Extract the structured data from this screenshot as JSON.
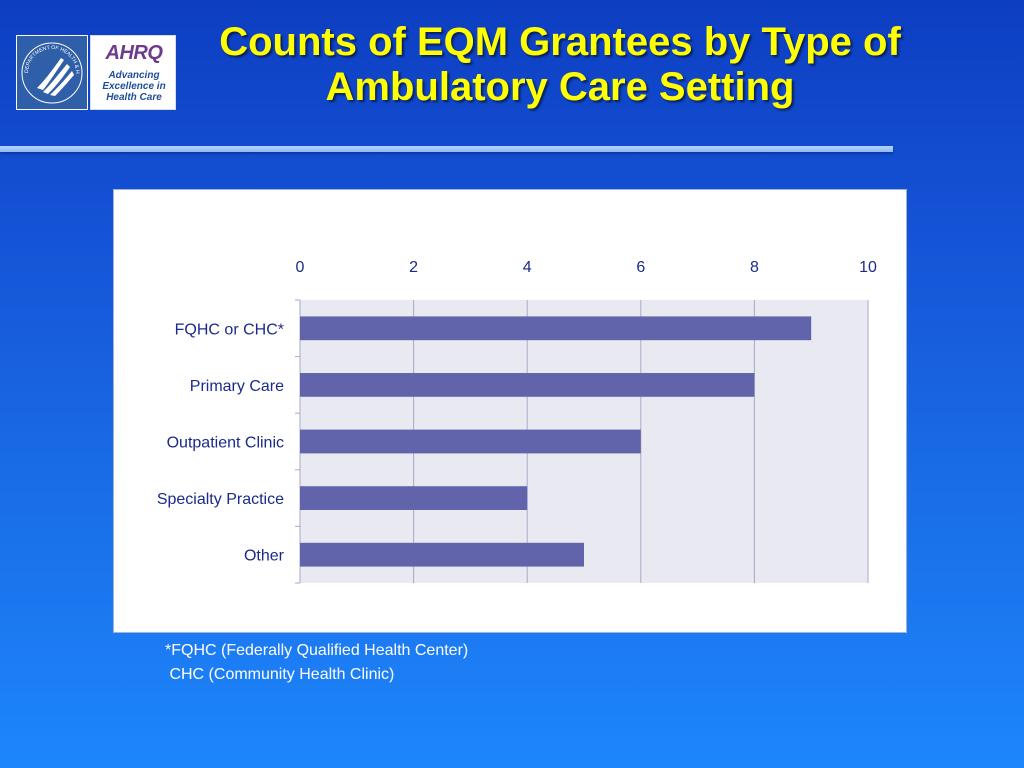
{
  "logos": {
    "hhs": {
      "icon": "hhs-eagle-seal-icon",
      "text": "DEPARTMENT OF HEALTH & HUMAN SERVICES USA"
    },
    "ahrq": {
      "icon": "ahrq-logo-icon",
      "mark": "AHRQ",
      "tagline": "Advancing\nExcellence in\nHealth Care"
    }
  },
  "title": "Counts of EQM Grantees by Type of Ambulatory Care Setting",
  "chart_data": {
    "type": "bar",
    "orientation": "horizontal",
    "categories": [
      "FQHC or CHC*",
      "Primary Care",
      "Outpatient Clinic",
      "Specialty Practice",
      "Other"
    ],
    "values": [
      9,
      8,
      6,
      4,
      5
    ],
    "xlim": [
      0,
      10
    ],
    "xticks": [
      0,
      2,
      4,
      6,
      8,
      10
    ],
    "x_axis_position": "top",
    "grid": true,
    "colors": {
      "bar": "#6264ab",
      "plot_bg": "#e9e9f2",
      "grid": "#a9a9c8",
      "text": "#1a2a8c"
    }
  },
  "footnotes": [
    "*FQHC (Federally Qualified Health Center)",
    " CHC (Community Health Clinic)"
  ]
}
